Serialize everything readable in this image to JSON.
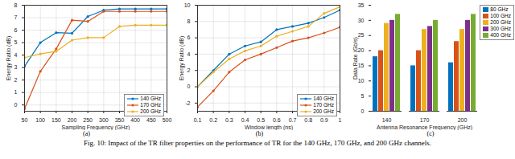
{
  "caption": "Fig. 10: Impact of the TR filter properties on the performance of TR for the 140 GHz, 170 GHz, and 200 GHz channels.",
  "chart_data": [
    {
      "type": "line",
      "title": "(a)",
      "x_label": "Sampling Frequency (GHz)",
      "y_label": "Energy Ratio (dB)",
      "x": [
        50,
        100,
        150,
        200,
        250,
        300,
        350,
        400,
        450,
        500
      ],
      "xlim": [
        50,
        500
      ],
      "xticks": [
        50,
        100,
        150,
        200,
        250,
        300,
        350,
        400,
        450,
        500
      ],
      "ylim": [
        -0.5,
        8
      ],
      "yticks": [
        0,
        1,
        2,
        3,
        4,
        5,
        6,
        7,
        8
      ],
      "grid": true,
      "legend": "lower right",
      "series": [
        {
          "name": "140 GHz",
          "color": "#0072BD",
          "marker": "circle",
          "values": [
            3.1,
            5.0,
            5.8,
            5.75,
            7.1,
            7.6,
            7.7,
            7.7,
            7.7,
            7.7
          ]
        },
        {
          "name": "170 GHz",
          "color": "#D95319",
          "marker": "circle",
          "values": [
            -0.3,
            2.7,
            4.5,
            6.8,
            6.7,
            7.5,
            7.5,
            7.5,
            7.5,
            7.5
          ]
        },
        {
          "name": "200 GHz",
          "color": "#EDB120",
          "marker": "circle",
          "values": [
            3.8,
            4.1,
            4.3,
            5.2,
            5.4,
            5.4,
            6.3,
            6.4,
            6.4,
            6.4
          ]
        }
      ]
    },
    {
      "type": "line",
      "title": "(b)",
      "x_label": "Window length (ns)",
      "y_label": "Energy Ratio (dB)",
      "x": [
        0.1,
        0.2,
        0.3,
        0.4,
        0.5,
        0.6,
        0.7,
        0.8,
        0.9,
        1
      ],
      "xlim": [
        0.1,
        1
      ],
      "xticks": [
        0.1,
        0.2,
        0.3,
        0.4,
        0.5,
        0.6,
        0.7,
        0.8,
        0.9,
        1
      ],
      "ylim": [
        -3,
        10
      ],
      "yticks": [
        -2,
        0,
        2,
        4,
        6,
        8,
        10
      ],
      "grid": true,
      "legend": "lower right",
      "series": [
        {
          "name": "140 GHz",
          "color": "#0072BD",
          "marker": "circle",
          "values": [
            0.0,
            2.0,
            4.0,
            5.0,
            5.5,
            7.0,
            7.4,
            7.8,
            8.5,
            9.4
          ]
        },
        {
          "name": "170 GHz",
          "color": "#D95319",
          "marker": "circle",
          "values": [
            -2.5,
            -0.5,
            1.8,
            3.3,
            4.0,
            4.8,
            5.6,
            6.0,
            6.6,
            7.3
          ]
        },
        {
          "name": "200 GHz",
          "color": "#EDB120",
          "marker": "circle",
          "values": [
            0.0,
            1.8,
            3.4,
            4.4,
            5.0,
            6.2,
            6.8,
            7.4,
            9.0,
            9.8
          ]
        }
      ]
    },
    {
      "type": "bar",
      "title": "(c)",
      "x_label": "Antenna Resonance Frequency (GHz)",
      "y_label": "Data Rate (Gb/s)",
      "categories": [
        "140",
        "170",
        "200"
      ],
      "ylim": [
        0,
        35
      ],
      "yticks": [
        0,
        5,
        10,
        15,
        20,
        25,
        30,
        35
      ],
      "grid": false,
      "legend": "right",
      "series": [
        {
          "name": "80 GHz",
          "color": "#0072BD",
          "values": [
            18,
            15,
            16
          ]
        },
        {
          "name": "100 GHz",
          "color": "#D95319",
          "values": [
            20,
            20,
            23
          ]
        },
        {
          "name": "200 GHz",
          "color": "#EDB120",
          "values": [
            29,
            27,
            27
          ]
        },
        {
          "name": "300 GHz",
          "color": "#7E2F8E",
          "values": [
            30,
            28,
            30
          ]
        },
        {
          "name": "400 GHz",
          "color": "#77AC30",
          "values": [
            32,
            30,
            32
          ]
        }
      ]
    }
  ]
}
